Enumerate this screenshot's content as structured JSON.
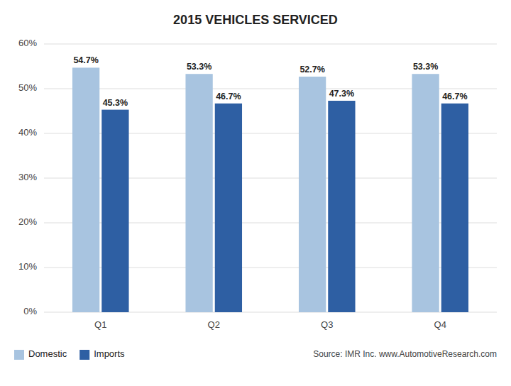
{
  "chart_data": {
    "type": "bar",
    "title": "2015 VEHICLES SERVICED",
    "categories": [
      "Q1",
      "Q2",
      "Q3",
      "Q4"
    ],
    "series": [
      {
        "name": "Domestic",
        "color": "#a8c4e0",
        "values": [
          54.7,
          53.3,
          52.7,
          53.3
        ],
        "value_labels": [
          "54.7%",
          "53.3%",
          "52.7%",
          "53.3%"
        ]
      },
      {
        "name": "Imports",
        "color": "#2e5fa3",
        "values": [
          45.3,
          46.7,
          47.3,
          46.7
        ],
        "value_labels": [
          "45.3%",
          "46.7%",
          "47.3%",
          "46.7%"
        ]
      }
    ],
    "ylim": [
      0,
      60
    ],
    "yticks": [
      {
        "value": 0,
        "label": "0%"
      },
      {
        "value": 10,
        "label": "10%"
      },
      {
        "value": 20,
        "label": "20%"
      },
      {
        "value": 30,
        "label": "30%"
      },
      {
        "value": 40,
        "label": "40%"
      },
      {
        "value": 50,
        "label": "50%"
      },
      {
        "value": 60,
        "label": "60%"
      }
    ],
    "grid": true,
    "data_labels": true,
    "legend": "bottom",
    "annotations": [
      "Source: IMR Inc. www.AutomotiveResearch.com"
    ]
  }
}
